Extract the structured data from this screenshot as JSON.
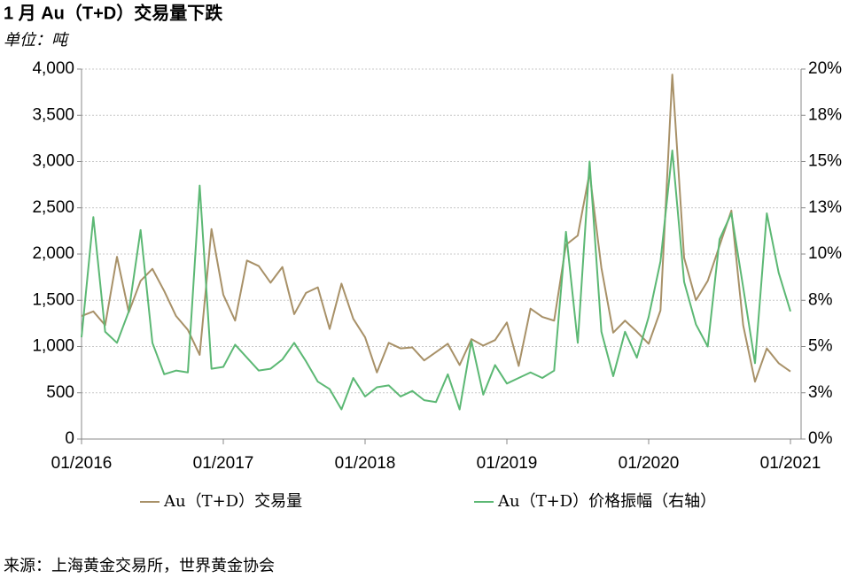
{
  "chart_data": {
    "type": "line",
    "title": "1 月 Au（T+D）交易量下跌",
    "subtitle": "单位：吨",
    "source": "来源：上海黄金交易所，世界黄金协会",
    "categories": [
      "01/2016",
      null,
      null,
      null,
      null,
      null,
      null,
      null,
      null,
      null,
      null,
      null,
      "01/2017",
      null,
      null,
      null,
      null,
      null,
      null,
      null,
      null,
      null,
      null,
      null,
      "01/2018",
      null,
      null,
      null,
      null,
      null,
      null,
      null,
      null,
      null,
      null,
      null,
      "01/2019",
      null,
      null,
      null,
      null,
      null,
      null,
      null,
      null,
      null,
      null,
      null,
      "01/2020",
      null,
      null,
      null,
      null,
      null,
      null,
      null,
      null,
      null,
      null,
      null,
      "01/2021"
    ],
    "series": [
      {
        "name": "Au（T+D）交易量",
        "color": "#a89168",
        "values": [
          1330,
          1380,
          1230,
          1970,
          1370,
          1710,
          1840,
          1600,
          1330,
          1180,
          910,
          2270,
          1560,
          1280,
          1930,
          1870,
          1690,
          1860,
          1350,
          1580,
          1640,
          1190,
          1680,
          1300,
          1100,
          720,
          1040,
          980,
          990,
          850,
          940,
          1030,
          800,
          1080,
          1010,
          1070,
          1260,
          790,
          1410,
          1320,
          1280,
          2100,
          2200,
          2880,
          1850,
          1150,
          1280,
          1160,
          1030,
          1390,
          3940,
          1960,
          1500,
          1710,
          2090,
          2470,
          1230,
          620,
          980,
          820,
          730
        ]
      },
      {
        "name": "Au（T+D）价格振幅（右轴）",
        "color": "#5cb874",
        "axis": "y2",
        "values": [
          5.5,
          12,
          5.8,
          5.2,
          6.9,
          11.3,
          5.2,
          3.5,
          3.7,
          3.6,
          13.7,
          3.8,
          3.9,
          5.1,
          4.4,
          3.7,
          3.8,
          4.3,
          5.2,
          4.2,
          3.1,
          2.7,
          1.6,
          3.3,
          2.3,
          2.8,
          2.9,
          2.3,
          2.6,
          2.1,
          2.0,
          3.5,
          1.6,
          5.3,
          2.4,
          4.0,
          3.0,
          3.3,
          3.6,
          3.3,
          3.7,
          11.2,
          5.2,
          15.0,
          5.8,
          3.4,
          5.8,
          4.4,
          6.6,
          9.6,
          15.6,
          8.5,
          6.2,
          5.0,
          10.8,
          12.2,
          8.2,
          4.1,
          12.2,
          9.0,
          6.9
        ]
      }
    ],
    "ylim": [
      0,
      4000
    ],
    "yticks": [
      0,
      500,
      {
        "value": 1000,
        "label": "1,000"
      },
      {
        "value": 1500,
        "label": "1,500"
      },
      {
        "value": 2000,
        "label": "2,000"
      },
      {
        "value": 2500,
        "label": "2,500"
      },
      {
        "value": 3000,
        "label": "3,000"
      },
      {
        "value": 3500,
        "label": "3,500"
      },
      {
        "value": 4000,
        "label": "4,000"
      }
    ],
    "y2lim": [
      0,
      20
    ],
    "y2ticks": [
      {
        "value": 0,
        "label": "0%"
      },
      {
        "value": 2.5,
        "label": "3%"
      },
      {
        "value": 5,
        "label": "5%"
      },
      {
        "value": 7.5,
        "label": "8%"
      },
      {
        "value": 10,
        "label": "10%"
      },
      {
        "value": 12.5,
        "label": "13%"
      },
      {
        "value": 15,
        "label": "15%"
      },
      {
        "value": 17.5,
        "label": "18%"
      },
      {
        "value": 20,
        "label": "20%"
      }
    ],
    "grid": true
  }
}
